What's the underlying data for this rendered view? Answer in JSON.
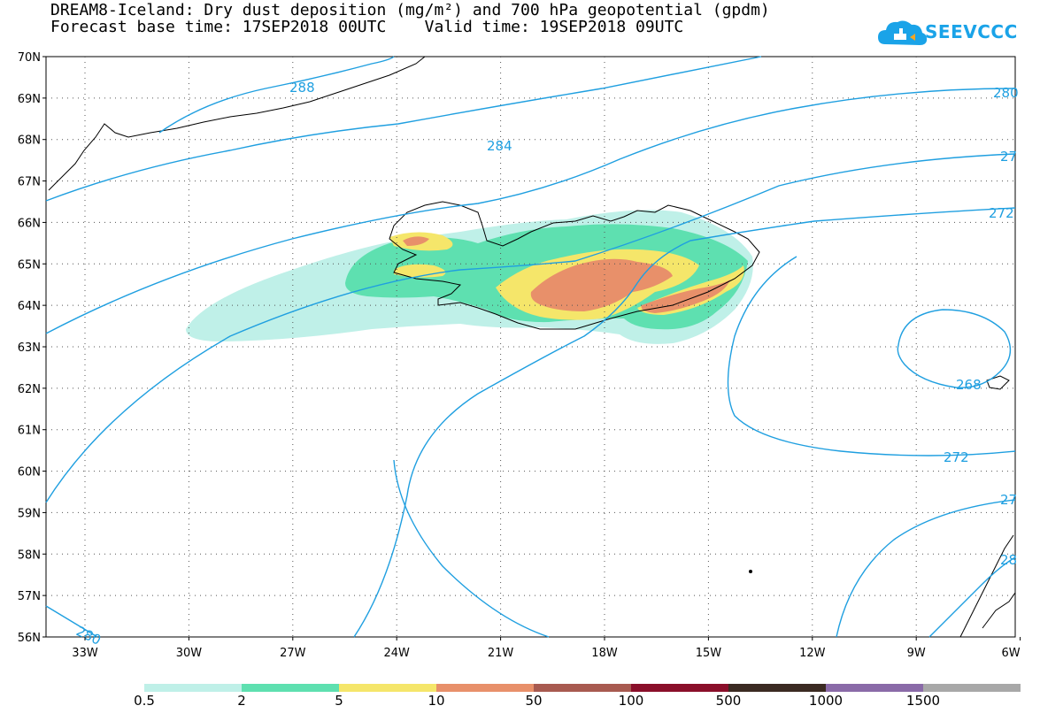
{
  "header": {
    "title_line1": "DREAM8-Iceland: Dry dust deposition (mg/m²) and 700 hPa geopotential (gpdm)",
    "title_line2": "Forecast base time: 17SEP2018 00UTC    Valid time: 19SEP2018 09UTC"
  },
  "logo": {
    "text": "SEEVCCC",
    "color": "#1aa3e8"
  },
  "axes": {
    "lat_labels": [
      "70N",
      "69N",
      "68N",
      "67N",
      "66N",
      "65N",
      "64N",
      "63N",
      "62N",
      "61N",
      "60N",
      "59N",
      "58N",
      "57N",
      "56N"
    ],
    "lon_labels": [
      "33W",
      "30W",
      "27W",
      "24W",
      "21W",
      "18W",
      "15W",
      "12W",
      "9W",
      "6W"
    ]
  },
  "contour_labels": {
    "c288": "288",
    "c284": "284",
    "c280_ne": "280",
    "c276_e": "27",
    "c272_e": "272",
    "c268": "268",
    "c272_s": "272",
    "c276_se": "27",
    "c280_se": "28",
    "c280_sw": "280"
  },
  "legend": {
    "colors": [
      "#bff0e8",
      "#5ee0b0",
      "#f5e66a",
      "#e8906a",
      "#a85a50",
      "#8a0f2a",
      "#3b2a22",
      "#8a6aa8",
      "#a8a8a8"
    ],
    "labels": [
      "0.5",
      "2",
      "5",
      "10",
      "50",
      "100",
      "500",
      "1000",
      "1500"
    ]
  },
  "colors": {
    "contour": "#1f9fe0",
    "coast": "#000000"
  }
}
